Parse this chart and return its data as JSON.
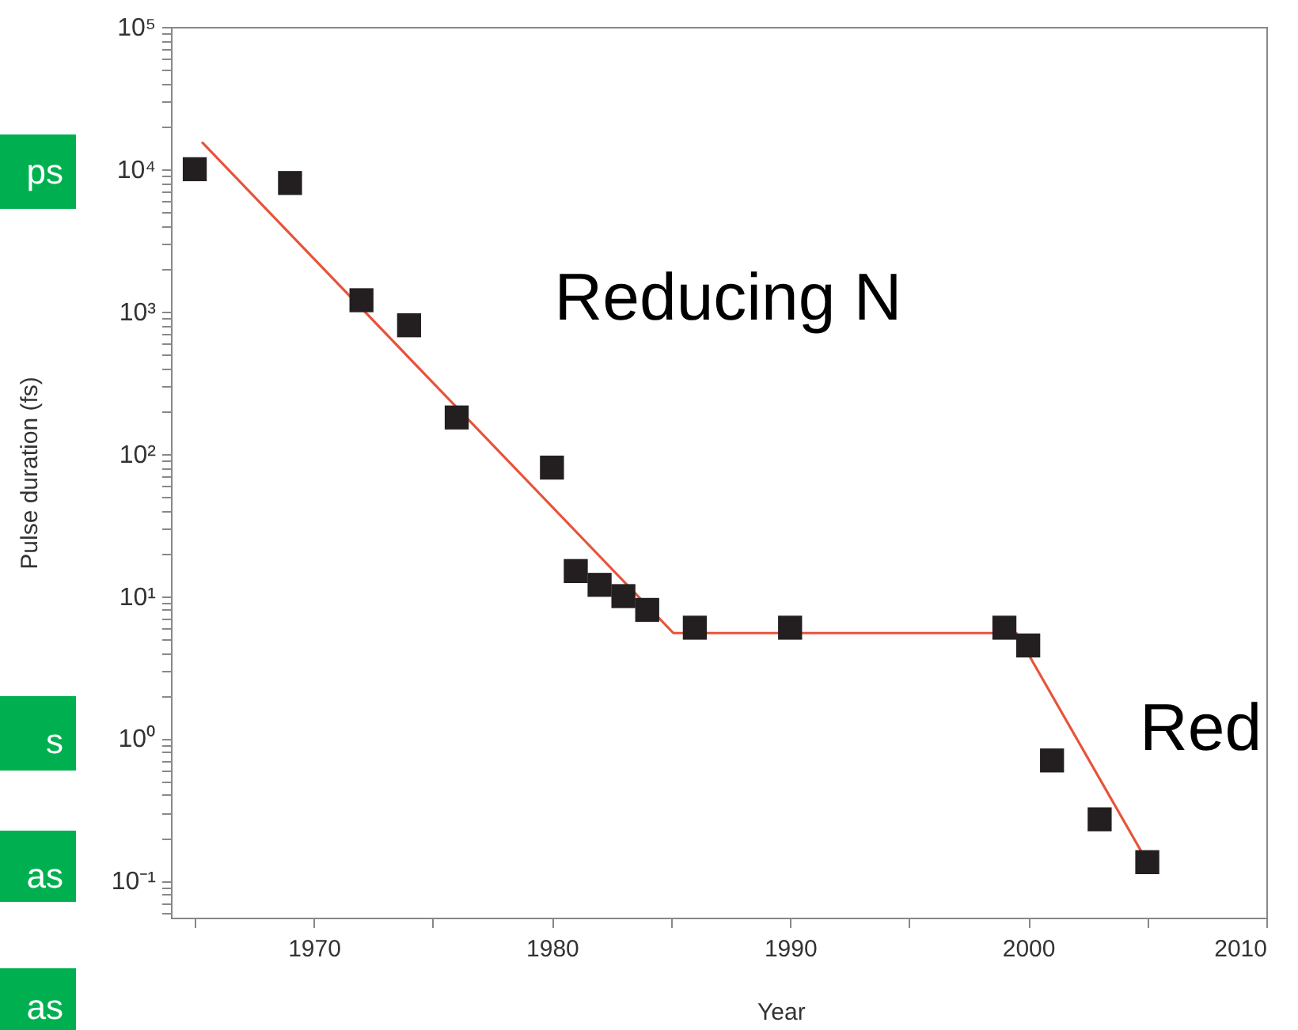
{
  "chart_data": {
    "type": "scatter",
    "xlabel": "Year",
    "ylabel": "Pulse duration (fs)",
    "log": "y",
    "grid": false,
    "marker": "square",
    "xlim": [
      1964,
      2010
    ],
    "xticks": [
      {
        "value": 1965,
        "label": null
      },
      1970,
      {
        "value": 1975,
        "label": null
      },
      1980,
      {
        "value": 1985,
        "label": null
      },
      1990,
      {
        "value": 1995,
        "label": null
      },
      2000,
      {
        "value": 2005,
        "label": null
      },
      2010
    ],
    "ylim": [
      0.055,
      100000
    ],
    "yticks": [
      {
        "value": 0.06,
        "label": null
      },
      {
        "value": 0.07,
        "label": null
      },
      {
        "value": 0.08,
        "label": null
      },
      {
        "value": 0.09,
        "label": null
      },
      {
        "value": 0.1,
        "label": "10⁻¹"
      },
      {
        "value": 0.2,
        "label": null
      },
      {
        "value": 0.3,
        "label": null
      },
      {
        "value": 0.4,
        "label": null
      },
      {
        "value": 0.5,
        "label": null
      },
      {
        "value": 0.6,
        "label": null
      },
      {
        "value": 0.7,
        "label": null
      },
      {
        "value": 0.8,
        "label": null
      },
      {
        "value": 0.9,
        "label": null
      },
      {
        "value": 1,
        "label": "10⁰"
      },
      {
        "value": 2,
        "label": null
      },
      {
        "value": 3,
        "label": null
      },
      {
        "value": 4,
        "label": null
      },
      {
        "value": 5,
        "label": null
      },
      {
        "value": 6,
        "label": null
      },
      {
        "value": 7,
        "label": null
      },
      {
        "value": 8,
        "label": null
      },
      {
        "value": 9,
        "label": null
      },
      {
        "value": 10,
        "label": "10¹"
      },
      {
        "value": 20,
        "label": null
      },
      {
        "value": 30,
        "label": null
      },
      {
        "value": 40,
        "label": null
      },
      {
        "value": 50,
        "label": null
      },
      {
        "value": 60,
        "label": null
      },
      {
        "value": 70,
        "label": null
      },
      {
        "value": 80,
        "label": null
      },
      {
        "value": 90,
        "label": null
      },
      {
        "value": 100,
        "label": "10²"
      },
      {
        "value": 200,
        "label": null
      },
      {
        "value": 300,
        "label": null
      },
      {
        "value": 400,
        "label": null
      },
      {
        "value": 500,
        "label": null
      },
      {
        "value": 600,
        "label": null
      },
      {
        "value": 700,
        "label": null
      },
      {
        "value": 800,
        "label": null
      },
      {
        "value": 900,
        "label": null
      },
      {
        "value": 1000,
        "label": "10³"
      },
      {
        "value": 2000,
        "label": null
      },
      {
        "value": 3000,
        "label": null
      },
      {
        "value": 4000,
        "label": null
      },
      {
        "value": 5000,
        "label": null
      },
      {
        "value": 6000,
        "label": null
      },
      {
        "value": 7000,
        "label": null
      },
      {
        "value": 8000,
        "label": null
      },
      {
        "value": 9000,
        "label": null
      },
      {
        "value": 10000,
        "label": "10⁴"
      },
      {
        "value": 20000,
        "label": null
      },
      {
        "value": 30000,
        "label": null
      },
      {
        "value": 40000,
        "label": null
      },
      {
        "value": 50000,
        "label": null
      },
      {
        "value": 60000,
        "label": null
      },
      {
        "value": 70000,
        "label": null
      },
      {
        "value": 80000,
        "label": null
      },
      {
        "value": 90000,
        "label": null
      },
      {
        "value": 100000,
        "label": "10⁵"
      }
    ],
    "series": [
      {
        "color": "#231f20",
        "x": [
          1965,
          1969,
          1972,
          1974,
          1976,
          1980,
          1981,
          1982,
          1983,
          1984,
          1986,
          1990,
          1999,
          2000,
          2001,
          2003,
          2005
        ],
        "values": [
          10000,
          8000,
          1200,
          800,
          180,
          80,
          15,
          12,
          10,
          8,
          6,
          6,
          6,
          4.5,
          0.7,
          0.27,
          0.135
        ]
      },
      {
        "type": "line",
        "marker": "none",
        "color": "#e8533a",
        "x": [
          1965.3,
          1985.1,
          1999.5,
          2004.8
        ],
        "values": [
          15500,
          5.5,
          5.5,
          0.155
        ]
      }
    ],
    "annotations": [
      "Reducing N",
      "Red",
      "ps",
      "s",
      "as",
      "as"
    ]
  }
}
